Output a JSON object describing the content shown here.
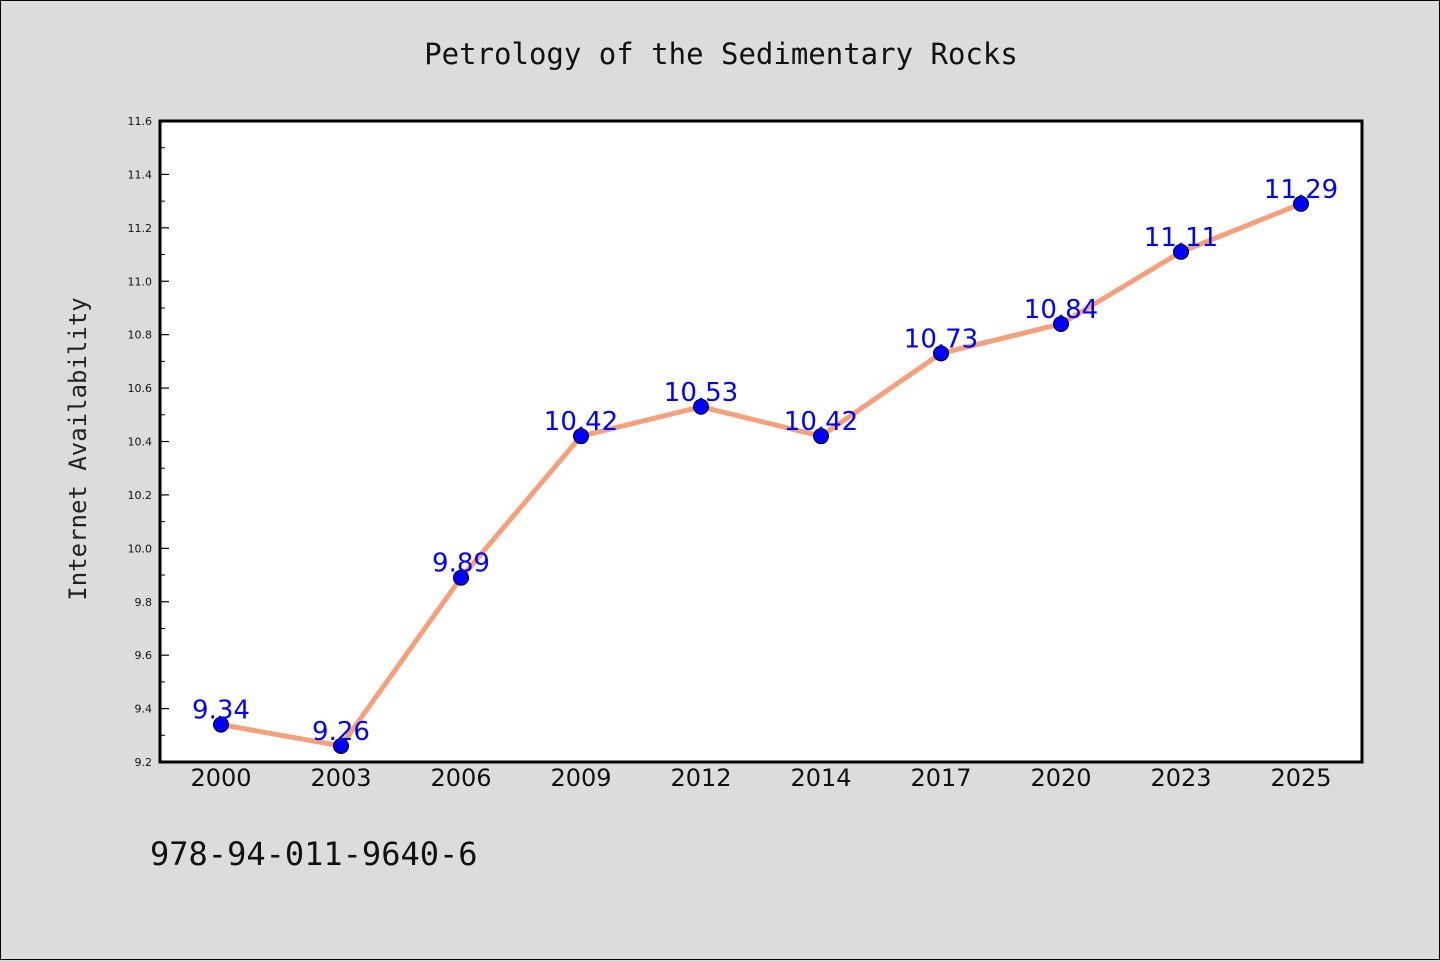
{
  "footer_text": "978-94-011-9640-6",
  "colors": {
    "background": "#dcdcdc",
    "plot_background": "#ffffff",
    "line": "#f4a07c",
    "marker": "#0000ff",
    "data_label": "#0000ff"
  },
  "chart_data": {
    "type": "line",
    "title": "Petrology of the Sedimentary Rocks",
    "xlabel": "",
    "ylabel": "Internet Availability",
    "categories": [
      "2000",
      "2003",
      "2006",
      "2009",
      "2012",
      "2014",
      "2017",
      "2020",
      "2023",
      "2025"
    ],
    "series": [
      {
        "values": [
          9.34,
          9.26,
          9.89,
          10.42,
          10.53,
          10.42,
          10.73,
          10.84,
          11.11,
          11.29
        ]
      }
    ],
    "data_labels": [
      "9.34",
      "9.26",
      "9.89",
      "10.42",
      "10.53",
      "10.42",
      "10.73",
      "10.84",
      "11.11",
      "11.29"
    ],
    "ylim": [
      9.2,
      11.6
    ],
    "yticks": [
      "9.2",
      "9.4",
      "9.6",
      "9.8",
      "10.0",
      "10.2",
      "10.4",
      "10.6",
      "10.8",
      "11.0",
      "11.2",
      "11.4",
      "11.6"
    ],
    "grid": false,
    "legend": "none"
  }
}
